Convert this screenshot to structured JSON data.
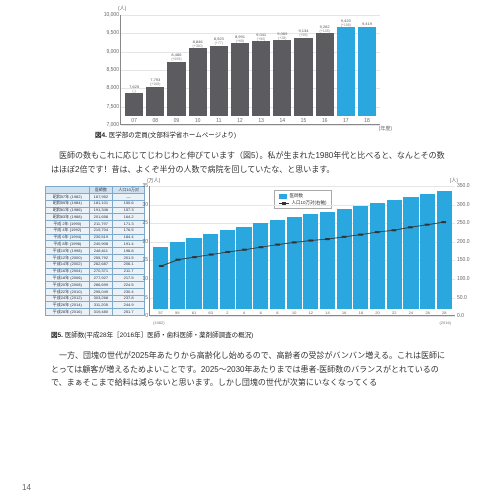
{
  "colors": {
    "bar_gray": "#5b5b60",
    "bar_blue": "#2aa7de",
    "grid": "#e5e5e5",
    "axis": "#888888",
    "text": "#333333"
  },
  "chart4": {
    "type": "bar",
    "y_unit": "(人)",
    "x_unit": "(年度)",
    "ylim": [
      7000,
      10000
    ],
    "yticks": [
      7000,
      7500,
      8000,
      8500,
      9000,
      9500,
      10000
    ],
    "bars": [
      {
        "x": "07",
        "v": 7625,
        "sub": "(-)",
        "c": "#5b5b60"
      },
      {
        "x": "08",
        "v": 7793,
        "sub": "(+168)",
        "c": "#5b5b60"
      },
      {
        "x": "09",
        "v": 8486,
        "sub": "(+693)",
        "c": "#5b5b60"
      },
      {
        "x": "10",
        "v": 8846,
        "sub": "(+360)",
        "c": "#5b5b60"
      },
      {
        "x": "11",
        "v": 8923,
        "sub": "(+77)",
        "c": "#5b5b60"
      },
      {
        "x": "12",
        "v": 8991,
        "sub": "(+68)",
        "c": "#5b5b60"
      },
      {
        "x": "13",
        "v": 9041,
        "sub": "(+50)",
        "c": "#5b5b60"
      },
      {
        "x": "14",
        "v": 9069,
        "sub": "(+28)",
        "c": "#5b5b60"
      },
      {
        "x": "15",
        "v": 9134,
        "sub": "(+65)",
        "c": "#5b5b60"
      },
      {
        "x": "16",
        "v": 9262,
        "sub": "(+128)",
        "c": "#5b5b60"
      },
      {
        "x": "17",
        "v": 9420,
        "sub": "(+158)",
        "c": "#2aa7de"
      },
      {
        "x": "18",
        "v": 9419,
        "sub": "",
        "c": "#2aa7de"
      }
    ]
  },
  "caption4": {
    "bold": "図4.",
    "rest": " 医学部の定員(文部科学省ホームページより)"
  },
  "para1": "医師の数もこれに応じてじわじわと伸びています（図5）。私が生まれた1980年代と比べると、なんとその数はほぼ2倍です！昔は、よくぞ半分の人数で病院を回していたな、と思います。",
  "table5": {
    "headers": [
      "",
      "医師数",
      "人口10万対"
    ],
    "rows": [
      [
        "昭和57年 (1982)",
        "167,952",
        "—"
      ],
      [
        "昭和59年 (1984)",
        "181,101",
        "150.6"
      ],
      [
        "昭和61年 (1986)",
        "191,346",
        "157.3"
      ],
      [
        "昭和63年 (1988)",
        "201,658",
        "164.2"
      ],
      [
        "平成 2年 (1990)",
        "211,797",
        "171.3"
      ],
      [
        "平成 4年 (1992)",
        "219,704",
        "176.5"
      ],
      [
        "平成 6年 (1994)",
        "230,519",
        "184.4"
      ],
      [
        "平成 8年 (1996)",
        "240,908",
        "191.4"
      ],
      [
        "平成10年 (1998)",
        "248,611",
        "196.8"
      ],
      [
        "平成12年 (2000)",
        "255,792",
        "201.5"
      ],
      [
        "平成14年 (2002)",
        "262,687",
        "206.1"
      ],
      [
        "平成16年 (2004)",
        "270,371",
        "211.7"
      ],
      [
        "平成18年 (2006)",
        "277,927",
        "217.5"
      ],
      [
        "平成20年 (2008)",
        "286,699",
        "224.5"
      ],
      [
        "平成22年 (2010)",
        "295,049",
        "230.4"
      ],
      [
        "平成24年 (2012)",
        "303,268",
        "237.8"
      ],
      [
        "平成26年 (2014)",
        "311,205",
        "244.9"
      ],
      [
        "平成28年 (2016)",
        "319,480",
        "251.7"
      ]
    ]
  },
  "chart5": {
    "type": "bar+line",
    "y_unit": "(万人)",
    "y2_unit": "(人)",
    "ylim": [
      0,
      35
    ],
    "yticks": [
      0,
      5,
      10,
      15,
      20,
      25,
      30,
      35
    ],
    "y2lim": [
      0,
      350
    ],
    "y2ticks": [
      0,
      50,
      100,
      150,
      200,
      250,
      300,
      350
    ],
    "legend": {
      "bar": "医師数",
      "line": "人口10万対(右軸)"
    },
    "bars": [
      {
        "x": "57",
        "v": 16.8,
        "l": 133
      },
      {
        "x": "59",
        "v": 18.1,
        "l": 150
      },
      {
        "x": "61",
        "v": 19.1,
        "l": 157
      },
      {
        "x": "63",
        "v": 20.2,
        "l": 164
      },
      {
        "x": "2",
        "v": 21.2,
        "l": 171
      },
      {
        "x": "4",
        "v": 22.0,
        "l": 177
      },
      {
        "x": "6",
        "v": 23.1,
        "l": 184
      },
      {
        "x": "8",
        "v": 24.1,
        "l": 191
      },
      {
        "x": "10",
        "v": 24.9,
        "l": 197
      },
      {
        "x": "12",
        "v": 25.6,
        "l": 202
      },
      {
        "x": "14",
        "v": 26.3,
        "l": 206
      },
      {
        "x": "16",
        "v": 27.0,
        "l": 212
      },
      {
        "x": "18",
        "v": 27.8,
        "l": 218
      },
      {
        "x": "20",
        "v": 28.7,
        "l": 225
      },
      {
        "x": "22",
        "v": 29.5,
        "l": 230
      },
      {
        "x": "24",
        "v": 30.3,
        "l": 238
      },
      {
        "x": "26",
        "v": 31.1,
        "l": 245
      },
      {
        "x": "28",
        "v": 31.9,
        "l": 252
      }
    ],
    "xrange": {
      "start": "(1982)",
      "end": "(2016)"
    },
    "bar_color": "#2aa7de"
  },
  "caption5": {
    "bold": "図5.",
    "rest": " 医師数(平成28年［2016年］医師・歯科医師・薬剤師調査の概況)"
  },
  "para2": "一方、団塊の世代が2025年あたりから高齢化し始めるので、高齢者の受診がバンバン増える。これは医師にとっては顧客が増えるためよいことです。2025～2030年あたりまでは患者-医師数のバランスがとれているので、まぁそこまで給料は減らないと思います。しかし団塊の世代が次第にいなくなってくる",
  "page": "14"
}
